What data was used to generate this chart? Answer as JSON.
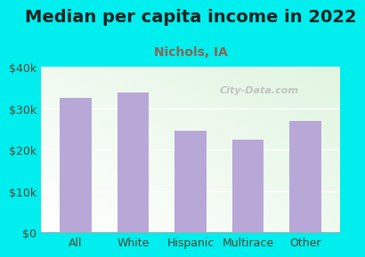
{
  "title": "Median per capita income in 2022",
  "subtitle": "Nichols, IA",
  "categories": [
    "All",
    "White",
    "Hispanic",
    "Multirace",
    "Other"
  ],
  "values": [
    32500,
    33800,
    24500,
    22500,
    27000
  ],
  "bar_color": "#b8a8d8",
  "background_color": "#00eeee",
  "title_color": "#222222",
  "subtitle_color": "#886655",
  "tick_label_color": "#554433",
  "ylim": [
    0,
    40000
  ],
  "yticks": [
    0,
    10000,
    20000,
    30000,
    40000
  ],
  "ytick_labels": [
    "$0",
    "$10k",
    "$20k",
    "$30k",
    "$40k"
  ],
  "watermark": "City-Data.com",
  "title_fontsize": 14,
  "subtitle_fontsize": 10,
  "tick_fontsize": 9,
  "bar_width": 0.55
}
